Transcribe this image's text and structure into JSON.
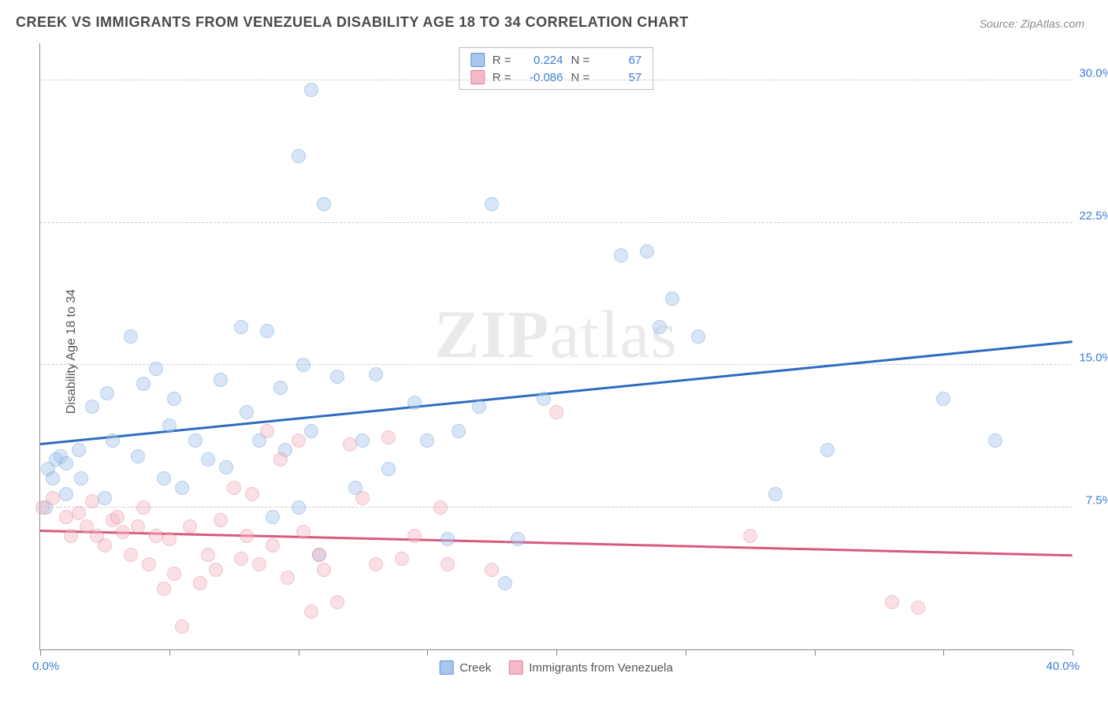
{
  "title": "CREEK VS IMMIGRANTS FROM VENEZUELA DISABILITY AGE 18 TO 34 CORRELATION CHART",
  "source": "Source: ZipAtlas.com",
  "ylabel": "Disability Age 18 to 34",
  "watermark_bold": "ZIP",
  "watermark_rest": "atlas",
  "chart": {
    "type": "scatter",
    "xlim": [
      0,
      40
    ],
    "ylim": [
      0,
      32
    ],
    "x_axis_label_left": "0.0%",
    "x_axis_label_right": "40.0%",
    "y_ticks": [
      7.5,
      15.0,
      22.5,
      30.0
    ],
    "y_tick_labels": [
      "7.5%",
      "15.0%",
      "22.5%",
      "30.0%"
    ],
    "x_ticks_minor": [
      0,
      5,
      10,
      15,
      20,
      25,
      30,
      35,
      40
    ],
    "grid_color": "#cccccc",
    "axis_color": "#888888",
    "background_color": "#ffffff",
    "tick_label_color": "#3b7dd8",
    "marker_radius": 9,
    "marker_opacity": 0.45,
    "series": [
      {
        "name": "Creek",
        "fill": "#a7c7ec",
        "stroke": "#5a94d6",
        "r_value": "0.224",
        "n_value": "67",
        "trend": {
          "x1": 0,
          "y1": 10.8,
          "x2": 40,
          "y2": 16.2,
          "color": "#2d6cc0",
          "width": 2.5
        },
        "points": [
          [
            0.2,
            7.5
          ],
          [
            0.3,
            9.5
          ],
          [
            0.5,
            9.0
          ],
          [
            0.6,
            10.0
          ],
          [
            0.8,
            10.2
          ],
          [
            1.0,
            8.2
          ],
          [
            1.0,
            9.8
          ],
          [
            1.5,
            10.5
          ],
          [
            1.6,
            9.0
          ],
          [
            2.0,
            12.8
          ],
          [
            2.5,
            8.0
          ],
          [
            2.6,
            13.5
          ],
          [
            2.8,
            11.0
          ],
          [
            3.5,
            16.5
          ],
          [
            3.8,
            10.2
          ],
          [
            4.0,
            14.0
          ],
          [
            4.5,
            14.8
          ],
          [
            4.8,
            9.0
          ],
          [
            5.0,
            11.8
          ],
          [
            5.2,
            13.2
          ],
          [
            5.5,
            8.5
          ],
          [
            6.0,
            11.0
          ],
          [
            6.5,
            10.0
          ],
          [
            7.0,
            14.2
          ],
          [
            7.2,
            9.6
          ],
          [
            7.8,
            17.0
          ],
          [
            8.0,
            12.5
          ],
          [
            8.5,
            11.0
          ],
          [
            8.8,
            16.8
          ],
          [
            9.0,
            7.0
          ],
          [
            9.3,
            13.8
          ],
          [
            9.5,
            10.5
          ],
          [
            10.0,
            7.5
          ],
          [
            10.0,
            26.0
          ],
          [
            10.2,
            15.0
          ],
          [
            10.5,
            11.5
          ],
          [
            10.5,
            29.5
          ],
          [
            10.8,
            5.0
          ],
          [
            11.0,
            23.5
          ],
          [
            11.5,
            14.4
          ],
          [
            12.2,
            8.5
          ],
          [
            12.5,
            11.0
          ],
          [
            13.0,
            14.5
          ],
          [
            13.5,
            9.5
          ],
          [
            14.5,
            13.0
          ],
          [
            15.0,
            11.0
          ],
          [
            15.8,
            5.8
          ],
          [
            16.2,
            11.5
          ],
          [
            17.0,
            12.8
          ],
          [
            17.5,
            23.5
          ],
          [
            18.0,
            3.5
          ],
          [
            18.5,
            5.8
          ],
          [
            19.5,
            13.2
          ],
          [
            22.5,
            20.8
          ],
          [
            23.5,
            21.0
          ],
          [
            24.0,
            17.0
          ],
          [
            24.5,
            18.5
          ],
          [
            25.5,
            16.5
          ],
          [
            28.5,
            8.2
          ],
          [
            30.5,
            10.5
          ],
          [
            35.0,
            13.2
          ],
          [
            37.0,
            11.0
          ]
        ]
      },
      {
        "name": "Immigrants from Venezuela",
        "fill": "#f4b9c6",
        "stroke": "#e17e97",
        "r_value": "-0.086",
        "n_value": "57",
        "trend": {
          "x1": 0,
          "y1": 6.2,
          "x2": 40,
          "y2": 4.9,
          "color": "#d85a7d",
          "width": 2.5
        },
        "points": [
          [
            0.1,
            7.5
          ],
          [
            0.5,
            8.0
          ],
          [
            1.0,
            7.0
          ],
          [
            1.2,
            6.0
          ],
          [
            1.5,
            7.2
          ],
          [
            1.8,
            6.5
          ],
          [
            2.0,
            7.8
          ],
          [
            2.2,
            6.0
          ],
          [
            2.5,
            5.5
          ],
          [
            2.8,
            6.8
          ],
          [
            3.0,
            7.0
          ],
          [
            3.2,
            6.2
          ],
          [
            3.5,
            5.0
          ],
          [
            3.8,
            6.5
          ],
          [
            4.0,
            7.5
          ],
          [
            4.2,
            4.5
          ],
          [
            4.5,
            6.0
          ],
          [
            4.8,
            3.2
          ],
          [
            5.0,
            5.8
          ],
          [
            5.2,
            4.0
          ],
          [
            5.5,
            1.2
          ],
          [
            5.8,
            6.5
          ],
          [
            6.2,
            3.5
          ],
          [
            6.5,
            5.0
          ],
          [
            6.8,
            4.2
          ],
          [
            7.0,
            6.8
          ],
          [
            7.5,
            8.5
          ],
          [
            7.8,
            4.8
          ],
          [
            8.0,
            6.0
          ],
          [
            8.2,
            8.2
          ],
          [
            8.5,
            4.5
          ],
          [
            8.8,
            11.5
          ],
          [
            9.0,
            5.5
          ],
          [
            9.3,
            10.0
          ],
          [
            9.6,
            3.8
          ],
          [
            10.0,
            11.0
          ],
          [
            10.2,
            6.2
          ],
          [
            10.5,
            2.0
          ],
          [
            10.8,
            5.0
          ],
          [
            11.0,
            4.2
          ],
          [
            11.5,
            2.5
          ],
          [
            12.0,
            10.8
          ],
          [
            12.5,
            8.0
          ],
          [
            13.0,
            4.5
          ],
          [
            13.5,
            11.2
          ],
          [
            14.0,
            4.8
          ],
          [
            14.5,
            6.0
          ],
          [
            15.5,
            7.5
          ],
          [
            15.8,
            4.5
          ],
          [
            17.5,
            4.2
          ],
          [
            20.0,
            12.5
          ],
          [
            27.5,
            6.0
          ],
          [
            33.0,
            2.5
          ],
          [
            34.0,
            2.2
          ]
        ]
      }
    ],
    "top_legend": {
      "r_label": "R =",
      "n_label": "N ="
    },
    "bottom_legend_labels": [
      "Creek",
      "Immigrants from Venezuela"
    ]
  }
}
